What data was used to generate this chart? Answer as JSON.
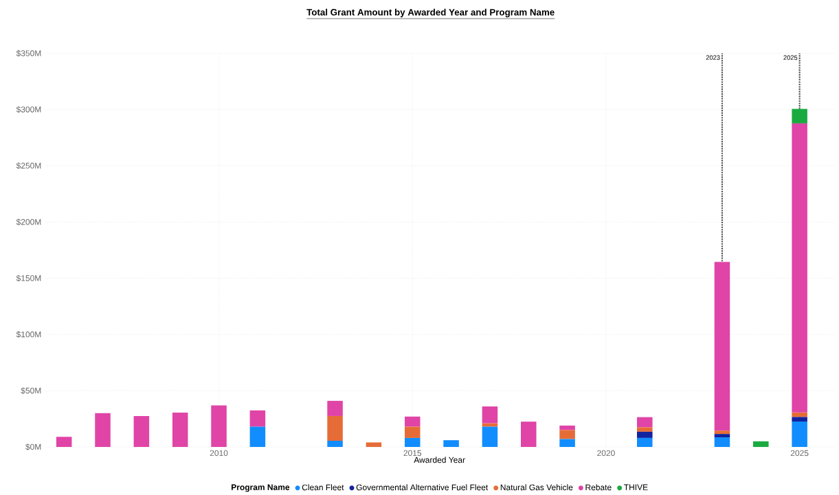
{
  "chart_data": {
    "type": "bar",
    "stacked": true,
    "title": "Total Grant Amount by Awarded Year and Program Name",
    "xlabel": "Awarded Year",
    "legend_title": "Program Name",
    "x": [
      2006,
      2007,
      2008,
      2009,
      2010,
      2011,
      2012,
      2013,
      2014,
      2015,
      2016,
      2017,
      2018,
      2019,
      2020,
      2021,
      2022,
      2023,
      2024,
      2025
    ],
    "series": [
      {
        "name": "Clean Fleet",
        "color": "#118dff",
        "values": [
          null,
          null,
          null,
          null,
          null,
          18,
          null,
          5.5,
          null,
          8,
          6,
          18,
          null,
          7,
          null,
          8,
          null,
          8.5,
          null,
          22.6
        ]
      },
      {
        "name": "Governmental Alternative Fuel Fleet",
        "color": "#12239e",
        "values": [
          null,
          null,
          null,
          null,
          null,
          null,
          null,
          null,
          null,
          null,
          null,
          null,
          null,
          null,
          null,
          5.5,
          null,
          3,
          null,
          4
        ]
      },
      {
        "name": "Natural Gas Vehicle",
        "color": "#e66c37",
        "values": [
          null,
          null,
          null,
          null,
          null,
          null,
          null,
          22,
          4,
          10,
          null,
          3,
          null,
          8,
          null,
          4,
          null,
          3,
          null,
          4
        ]
      },
      {
        "name": "Rebate",
        "color": "#e044a7",
        "values": [
          9,
          30,
          27.5,
          30.5,
          37,
          14.5,
          null,
          13.5,
          null,
          9,
          null,
          15,
          22.5,
          4,
          null,
          9,
          null,
          150,
          null,
          257
        ]
      },
      {
        "name": "THIVE",
        "color": "#1aab40",
        "values": [
          null,
          null,
          null,
          null,
          null,
          null,
          null,
          null,
          null,
          null,
          null,
          null,
          null,
          null,
          null,
          null,
          null,
          null,
          5,
          13
        ]
      }
    ],
    "xlim": [
      2005.5,
      2025.9
    ],
    "xticks": [
      2010,
      2015,
      2020,
      2025
    ],
    "ylim": [
      0,
      350
    ],
    "yticks": [
      {
        "value": 0,
        "label": "$0M"
      },
      {
        "value": 50,
        "label": "$50M"
      },
      {
        "value": 100,
        "label": "$100M"
      },
      {
        "value": 150,
        "label": "$150M"
      },
      {
        "value": 200,
        "label": "$200M"
      },
      {
        "value": 250,
        "label": "$250M"
      },
      {
        "value": 300,
        "label": "$300M"
      },
      {
        "value": 350,
        "label": "$350M"
      }
    ],
    "grid": true,
    "legend": "bottom",
    "ref_lines": [
      {
        "axis": "x",
        "value": 2023,
        "label": "2023",
        "color": "#555555",
        "line_style": "dotted"
      },
      {
        "axis": "x",
        "value": 2025,
        "label": "2025",
        "color": "#555555",
        "line_style": "dotted"
      }
    ]
  }
}
